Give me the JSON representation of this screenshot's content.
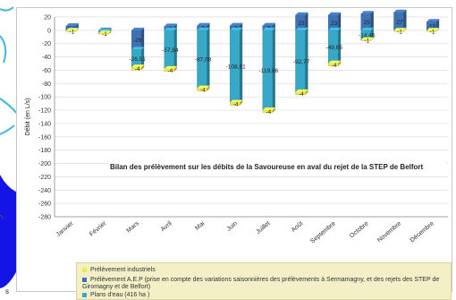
{
  "chart_data": {
    "type": "bar",
    "stacked": true,
    "title": "Bilan des prélèvement sur les débits de la Savoureuse en aval du rejet de la STEP de Belfort",
    "ylabel": "Débit (en L/s)",
    "xlabel": "",
    "ylim": [
      -280,
      20
    ],
    "ytick_step": 20,
    "grid": true,
    "categories": [
      "Janvier",
      "Février",
      "Mars",
      "Avril",
      "Mai",
      "Juin",
      "Juillet",
      "Août",
      "Septembre",
      "Octobre",
      "Novembre",
      "Décembre"
    ],
    "series": [
      {
        "name": "Prélèvement industriels",
        "color": "#f2e84a",
        "values": [
          -1,
          -1,
          -4,
          -4,
          -4,
          -4,
          -4,
          -4,
          -4,
          -1,
          -1,
          -1
        ],
        "labels": [
          "-1",
          "-1",
          "-4",
          "-4",
          "-4",
          "-4",
          "-4",
          "-4",
          "-4",
          "-1",
          "-1",
          "-1"
        ]
      },
      {
        "name": "Prélèvement A.E.P  (prise en compte des variations saisonnières des prélèvements à Sermamagny, et des rejets des  STEP de Giromagny et de Belfort)",
        "color": "#3f72b4",
        "values": [
          6.6,
          -1.66,
          -29,
          6,
          7,
          7,
          7,
          23,
          23,
          25,
          27,
          13
        ],
        "labels": [
          "6,6",
          "-1,66",
          "-29",
          "6",
          "7",
          "7",
          "7",
          "23",
          "23",
          "25",
          "27",
          "13"
        ]
      },
      {
        "name": "Plans d'eau (416 ha )",
        "color": "#38a8c8",
        "values": [
          -0.7,
          -3,
          -26.51,
          -57.84,
          -87.08,
          -108.61,
          -119.86,
          -92.77,
          -49.65,
          -14.46,
          -0.7,
          -0.7
        ],
        "labels": [
          "",
          "",
          "-26,51",
          "-57,84",
          "-87,08",
          "-108,61",
          "-119,86",
          "-92,77",
          "-49,65",
          "-14,46",
          "",
          ""
        ]
      }
    ]
  },
  "corner_text": "s"
}
